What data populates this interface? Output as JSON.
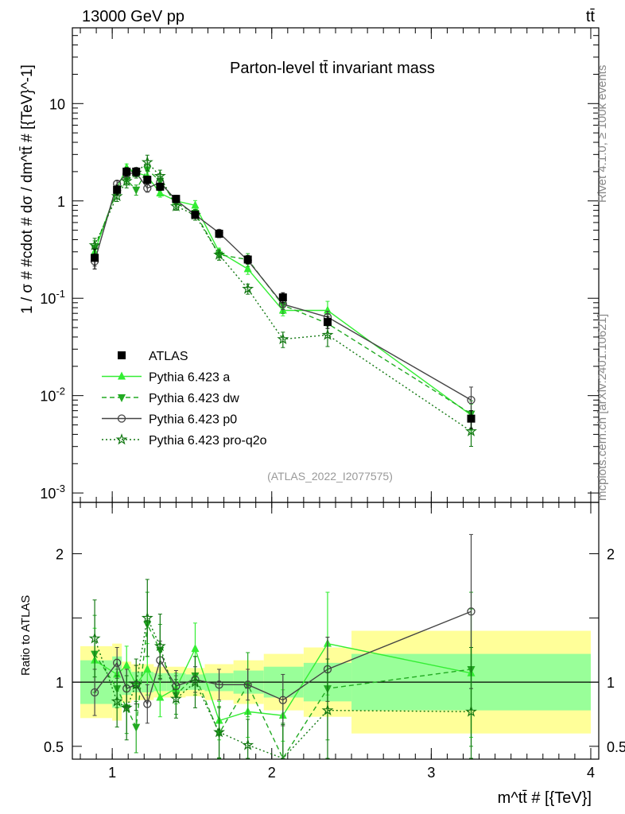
{
  "header": {
    "energy_label": "13000 GeV pp",
    "process_label": "tt̄"
  },
  "side_labels": {
    "rivet": "Rivet 4.1.0, ≥ 100k events",
    "mcplots": "mcplots.cern.ch [arXiv:2401.10621]"
  },
  "chart_data": {
    "type": "line",
    "title": "Parton-level tt̄ invariant mass",
    "watermark": "(ATLAS_2022_I2077575)",
    "xlabel": "m^tt̄ # [{TeV}]",
    "ylabel": "1 / σ # #cdot # dσ / dm^tt̄ # [{TeV}^-1]",
    "ratio_ylabel": "Ratio to ATLAS",
    "x_range": [
      0.75,
      4.05
    ],
    "y_range_log": [
      0.0008,
      60
    ],
    "ratio_range": [
      0.4,
      2.4
    ],
    "x_ticks": [
      1,
      2,
      3,
      4
    ],
    "x_tick_labels": [
      "1",
      "2",
      "3",
      "4"
    ],
    "y_ticks": [
      0.001,
      0.01,
      0.1,
      1,
      10
    ],
    "y_tick_labels": [
      "10^-3",
      "10^-2",
      "10^-1",
      "1",
      "10"
    ],
    "ratio_ticks": [
      0.5,
      1,
      2
    ],
    "ratio_tick_labels": [
      "0.5",
      "1",
      "2"
    ],
    "legend_position": "bottom-left",
    "x": [
      0.89,
      1.03,
      1.09,
      1.15,
      1.22,
      1.3,
      1.4,
      1.52,
      1.67,
      1.85,
      2.07,
      2.35,
      3.25
    ],
    "bin_edges": [
      0.8,
      1.0,
      1.06,
      1.12,
      1.18,
      1.26,
      1.34,
      1.46,
      1.58,
      1.76,
      1.95,
      2.2,
      2.5,
      4.0
    ],
    "band_green": [
      0.17,
      0.2,
      0.1,
      0.08,
      0.08,
      0.07,
      0.07,
      0.06,
      0.07,
      0.09,
      0.12,
      0.15,
      0.22,
      0.22
    ],
    "band_yellow": [
      0.28,
      0.3,
      0.16,
      0.14,
      0.14,
      0.12,
      0.12,
      0.11,
      0.14,
      0.17,
      0.22,
      0.27,
      0.4,
      0.4
    ],
    "series": [
      {
        "name": "ATLAS",
        "color": "#000000",
        "marker": "square",
        "values": [
          0.26,
          1.3,
          2.0,
          2.0,
          1.65,
          1.4,
          1.05,
          0.72,
          0.46,
          0.25,
          0.102,
          0.057,
          0.0058
        ],
        "errors": [
          0.06,
          0.15,
          0.2,
          0.2,
          0.15,
          0.12,
          0.09,
          0.06,
          0.04,
          0.025,
          0.012,
          0.008,
          0.0012
        ]
      },
      {
        "name": "Pythia 6.423 a",
        "color": "#33ee33",
        "marker": "triangle-up",
        "line": "solid",
        "values": [
          0.3,
          1.35,
          2.2,
          1.95,
          1.8,
          1.2,
          1.0,
          0.9,
          0.3,
          0.2,
          0.075,
          0.075,
          0.0063
        ],
        "ratio": [
          1.17,
          1.06,
          1.13,
          0.98,
          1.1,
          0.88,
          0.95,
          1.26,
          0.7,
          0.77,
          0.74,
          1.3,
          1.07
        ],
        "errors": [
          0.25,
          0.12,
          0.15,
          0.15,
          0.2,
          0.15,
          0.12,
          0.2,
          0.15,
          0.2,
          0.2,
          0.4,
          0.5
        ]
      },
      {
        "name": "Pythia 6.423 dw",
        "color": "#22aa22",
        "marker": "triangle-down",
        "line": "dashed",
        "values": [
          0.33,
          1.25,
          1.65,
          1.3,
          2.1,
          1.6,
          0.95,
          0.75,
          0.28,
          0.25,
          0.085,
          0.055,
          0.0065
        ],
        "ratio": [
          1.22,
          0.95,
          0.8,
          0.65,
          1.45,
          1.25,
          0.9,
          1.05,
          0.6,
          0.98,
          0.38,
          0.95,
          1.1
        ],
        "errors": [
          0.3,
          0.15,
          0.2,
          0.2,
          0.25,
          0.2,
          0.15,
          0.15,
          0.2,
          0.25,
          0.3,
          0.4,
          0.6
        ]
      },
      {
        "name": "Pythia 6.423 p0",
        "color": "#444444",
        "marker": "circle-open",
        "line": "solid",
        "values": [
          0.24,
          1.5,
          1.9,
          1.95,
          1.35,
          1.55,
          1.02,
          0.72,
          0.47,
          0.245,
          0.087,
          0.064,
          0.009
        ],
        "ratio": [
          0.92,
          1.15,
          0.95,
          0.98,
          0.83,
          1.17,
          0.97,
          1.02,
          0.98,
          0.98,
          0.86,
          1.1,
          1.55
        ],
        "errors": [
          0.18,
          0.12,
          0.15,
          0.15,
          0.15,
          0.15,
          0.12,
          0.1,
          0.12,
          0.12,
          0.2,
          0.25,
          0.6
        ]
      },
      {
        "name": "Pythia 6.423 pro-q2o",
        "color": "#117711",
        "marker": "star-open",
        "line": "dotted",
        "values": [
          0.35,
          1.12,
          1.6,
          1.95,
          2.5,
          1.8,
          0.88,
          0.72,
          0.28,
          0.125,
          0.038,
          0.042,
          0.0043
        ],
        "ratio": [
          1.34,
          0.85,
          0.8,
          0.98,
          1.5,
          1.28,
          0.87,
          1.0,
          0.61,
          0.51,
          0.37,
          0.78,
          0.77
        ],
        "errors": [
          0.3,
          0.2,
          0.25,
          0.2,
          0.3,
          0.25,
          0.15,
          0.2,
          0.2,
          0.2,
          0.3,
          0.4,
          0.5
        ]
      }
    ]
  }
}
